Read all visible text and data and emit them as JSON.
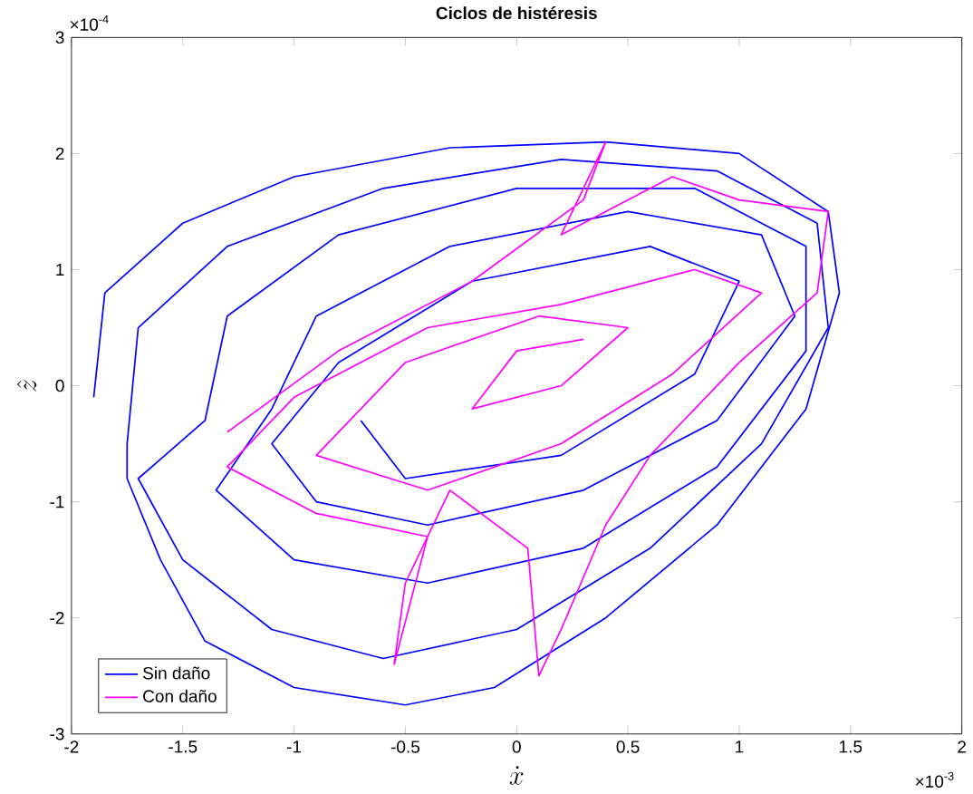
{
  "chart_data": {
    "type": "line",
    "title": "Ciclos de histéresis",
    "xlabel": "\\dot{x}",
    "ylabel": "\\hat{z}",
    "xlim": [
      -2,
      2
    ],
    "ylim": [
      -3,
      3
    ],
    "xticks": [
      -2,
      -1.5,
      -1,
      -0.5,
      0,
      0.5,
      1,
      1.5,
      2
    ],
    "yticks": [
      -3,
      -2,
      -1,
      0,
      1,
      2,
      3
    ],
    "annotations": [
      "×10$^{-3}$",
      "×10$^{-4}$"
    ],
    "legend": "bottom left",
    "grid": false,
    "marker": "none",
    "line_style": "solid",
    "series": [
      {
        "name": "Sin daño",
        "color": "#0000ff",
        "x": [
          -1.9,
          -1.85,
          -1.5,
          -1.0,
          -0.3,
          0.4,
          1.0,
          1.4,
          1.45,
          1.3,
          0.9,
          0.4,
          -0.1,
          -0.5,
          -1.0,
          -1.4,
          -1.6,
          -1.75,
          -1.75,
          -1.7,
          -1.3,
          -0.6,
          0.2,
          0.9,
          1.35,
          1.4,
          1.1,
          0.6,
          0,
          -0.6,
          -1.1,
          -1.5,
          -1.7,
          -1.4,
          -1.3,
          -0.8,
          0,
          0.8,
          1.3,
          1.3,
          0.9,
          0.3,
          -0.4,
          -1.0,
          -1.35,
          -1.1,
          -0.9,
          -0.3,
          0.5,
          1.1,
          1.25,
          0.9,
          0.3,
          -0.4,
          -0.9,
          -1.1,
          -0.8,
          -0.2,
          0.6,
          1.0,
          0.8,
          0.2,
          -0.5,
          -0.7
        ],
        "values": [
          -0.1,
          0.8,
          1.4,
          1.8,
          2.05,
          2.1,
          2.0,
          1.5,
          0.8,
          -0.2,
          -1.2,
          -2.0,
          -2.6,
          -2.75,
          -2.6,
          -2.2,
          -1.5,
          -0.8,
          -0.5,
          0.5,
          1.2,
          1.7,
          1.95,
          1.85,
          1.4,
          0.5,
          -0.5,
          -1.4,
          -2.1,
          -2.35,
          -2.1,
          -1.5,
          -0.8,
          -0.3,
          0.6,
          1.3,
          1.7,
          1.7,
          1.2,
          0.3,
          -0.7,
          -1.4,
          -1.7,
          -1.5,
          -0.9,
          -0.2,
          0.6,
          1.2,
          1.5,
          1.3,
          0.6,
          -0.3,
          -0.9,
          -1.2,
          -1.0,
          -0.5,
          0.2,
          0.9,
          1.2,
          0.9,
          0.1,
          -0.6,
          -0.8,
          -0.3
        ]
      },
      {
        "name": "Con daño",
        "color": "#ff00ff",
        "x": [
          -1.3,
          -0.8,
          -0.2,
          0.3,
          0.4,
          0.2,
          0.7,
          1.0,
          1.4,
          1.35,
          1.0,
          0.6,
          0.4,
          0.2,
          0.1,
          0.05,
          -0.3,
          -0.5,
          -0.55,
          -0.4,
          -0.9,
          -1.3,
          -1.0,
          -0.4,
          0.2,
          0.8,
          1.1,
          0.7,
          0.2,
          -0.4,
          -0.9,
          -0.5,
          0.1,
          0.5,
          0.2,
          -0.2,
          0.0,
          0.3
        ],
        "values": [
          -0.4,
          0.3,
          0.9,
          1.6,
          2.1,
          1.3,
          1.8,
          1.6,
          1.5,
          0.8,
          0.2,
          -0.6,
          -1.2,
          -2.1,
          -2.5,
          -1.4,
          -0.9,
          -1.7,
          -2.4,
          -1.3,
          -1.1,
          -0.7,
          -0.1,
          0.5,
          0.7,
          1.0,
          0.8,
          0.1,
          -0.5,
          -0.9,
          -0.6,
          0.2,
          0.6,
          0.5,
          0.0,
          -0.2,
          0.3,
          0.4
        ]
      }
    ]
  }
}
